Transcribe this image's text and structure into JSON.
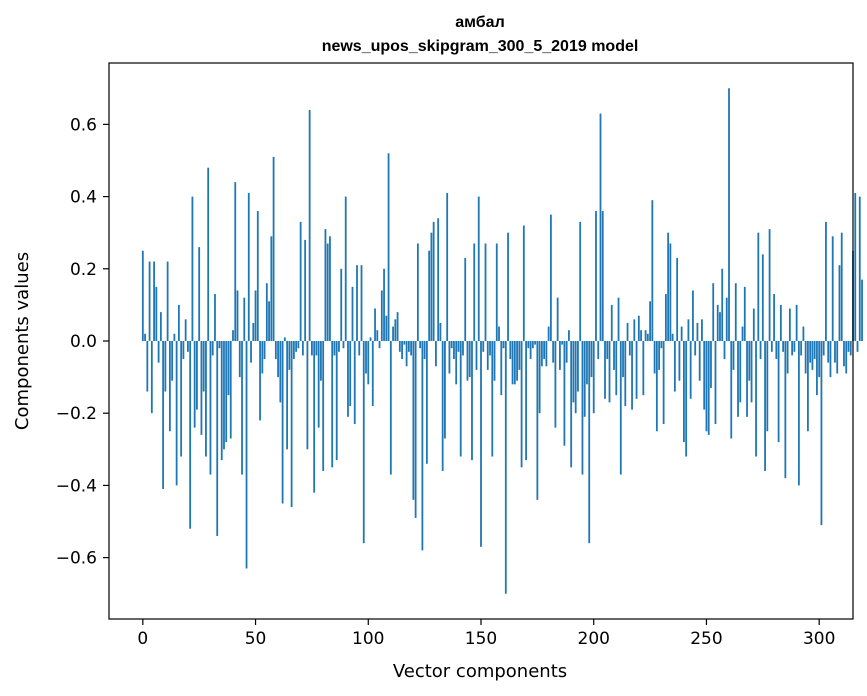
{
  "chart_data": {
    "type": "bar",
    "title_line1": "амбал",
    "title_line2": "news_upos_skipgram_300_5_2019 model",
    "xlabel": "Vector components",
    "ylabel": "Components values",
    "xlim": [
      -15,
      315
    ],
    "ylim": [
      -0.77,
      0.77
    ],
    "xticks": [
      0,
      50,
      100,
      150,
      200,
      250,
      300
    ],
    "xtick_labels": [
      "0",
      "50",
      "100",
      "150",
      "200",
      "250",
      "300"
    ],
    "yticks": [
      -0.6,
      -0.4,
      -0.2,
      0.0,
      0.2,
      0.4,
      0.6
    ],
    "ytick_labels": [
      "−0.6",
      "−0.4",
      "−0.2",
      "0.0",
      "0.2",
      "0.4",
      "0.6"
    ],
    "grid": false,
    "bar_color": "#1f77b4",
    "values": [
      0.25,
      0.02,
      -0.14,
      0.22,
      -0.2,
      0.22,
      0.15,
      -0.06,
      0.08,
      -0.41,
      -0.14,
      0.22,
      -0.25,
      -0.11,
      0.02,
      -0.4,
      0.1,
      -0.32,
      -0.05,
      0.06,
      -0.03,
      -0.52,
      0.4,
      -0.24,
      -0.19,
      0.26,
      -0.26,
      -0.14,
      -0.32,
      0.48,
      -0.37,
      -0.04,
      0.13,
      -0.54,
      -0.02,
      -0.33,
      -0.3,
      -0.28,
      -0.15,
      -0.27,
      0.03,
      0.44,
      0.14,
      -0.1,
      -0.37,
      0.12,
      -0.63,
      0.41,
      -0.06,
      0.05,
      0.14,
      0.36,
      -0.22,
      -0.09,
      -0.05,
      0.16,
      0.11,
      0.29,
      0.51,
      -0.05,
      -0.1,
      -0.17,
      -0.45,
      0.01,
      -0.3,
      -0.08,
      -0.46,
      -0.05,
      -0.03,
      -0.02,
      0.33,
      -0.04,
      0.28,
      -0.3,
      0.64,
      -0.04,
      -0.42,
      -0.04,
      -0.24,
      -0.11,
      -0.36,
      0.31,
      0.27,
      0.29,
      -0.35,
      -0.04,
      -0.33,
      -0.03,
      0.2,
      -0.02,
      0.4,
      -0.21,
      -0.18,
      0.15,
      -0.23,
      0.21,
      -0.04,
      0.21,
      -0.56,
      -0.09,
      -0.12,
      0.01,
      -0.18,
      0.09,
      0.03,
      -0.02,
      0.14,
      0.2,
      0.07,
      0.52,
      -0.37,
      0.04,
      0.06,
      0.08,
      -0.03,
      -0.05,
      -0.01,
      -0.07,
      -0.03,
      -0.04,
      -0.44,
      -0.49,
      0.27,
      -0.02,
      -0.58,
      -0.05,
      -0.34,
      0.25,
      0.3,
      0.33,
      -0.07,
      0.34,
      0.05,
      -0.36,
      -0.27,
      0.41,
      -0.09,
      -0.02,
      -0.05,
      -0.12,
      -0.03,
      -0.32,
      -0.04,
      0.23,
      -0.11,
      -0.1,
      -0.33,
      0.27,
      -0.08,
      0.4,
      -0.57,
      -0.03,
      0.27,
      -0.08,
      -0.04,
      -0.32,
      -0.11,
      0.27,
      0.04,
      -0.15,
      -0.02,
      -0.7,
      0.3,
      -0.05,
      -0.12,
      -0.12,
      -0.11,
      -0.08,
      -0.35,
      0.32,
      -0.33,
      -0.02,
      -0.05,
      -0.02,
      -0.01,
      -0.44,
      -0.2,
      -0.07,
      -0.05,
      -0.07,
      0.04,
      0.35,
      -0.06,
      -0.24,
      0.12,
      -0.08,
      -0.01,
      -0.29,
      -0.06,
      0.03,
      -0.35,
      -0.17,
      -0.2,
      -0.14,
      0.33,
      -0.37,
      -0.21,
      -0.12,
      -0.56,
      -0.1,
      -0.2,
      0.36,
      -0.05,
      0.63,
      0.36,
      -0.16,
      -0.05,
      -0.17,
      0.1,
      -0.08,
      -0.15,
      0.12,
      -0.37,
      -0.1,
      -0.18,
      0.05,
      -0.04,
      -0.19,
      0.06,
      -0.16,
      0.07,
      0.03,
      -0.15,
      0.03,
      0.02,
      0.11,
      0.39,
      -0.09,
      -0.25,
      -0.08,
      -0.02,
      -0.23,
      0.13,
      0.3,
      0.27,
      0.02,
      -0.14,
      0.23,
      -0.11,
      0.04,
      -0.28,
      -0.32,
      0.06,
      -0.16,
      0.14,
      -0.04,
      0.05,
      -0.11,
      0.06,
      -0.19,
      -0.25,
      -0.26,
      -0.13,
      0.16,
      -0.23,
      0.1,
      0.08,
      0.2,
      -0.05,
      0.12,
      0.7,
      -0.27,
      -0.08,
      0.16,
      -0.21,
      -0.17,
      0.04,
      0.15,
      -0.21,
      -0.11,
      -0.17,
      0.09,
      -0.32,
      0.3,
      -0.05,
      0.24,
      -0.36,
      -0.25,
      0.31,
      -0.03,
      0.13,
      -0.05,
      -0.28,
      0.1,
      -0.03,
      -0.38,
      -0.09,
      0.09,
      -0.04,
      -0.03,
      0.1,
      -0.4,
      -0.04,
      0.04,
      -0.09,
      -0.25,
      -0.06,
      -0.08,
      -0.05,
      -0.15,
      -0.1,
      -0.51,
      -0.04,
      0.33,
      -0.06,
      -0.1,
      0.29,
      -0.06,
      -0.09,
      0.21,
      0.3,
      -0.07,
      -0.09,
      -0.03,
      -0.04,
      0.25,
      0.41,
      -0.03,
      0.4,
      0.17
    ],
    "bar_width_units": 0.8
  }
}
